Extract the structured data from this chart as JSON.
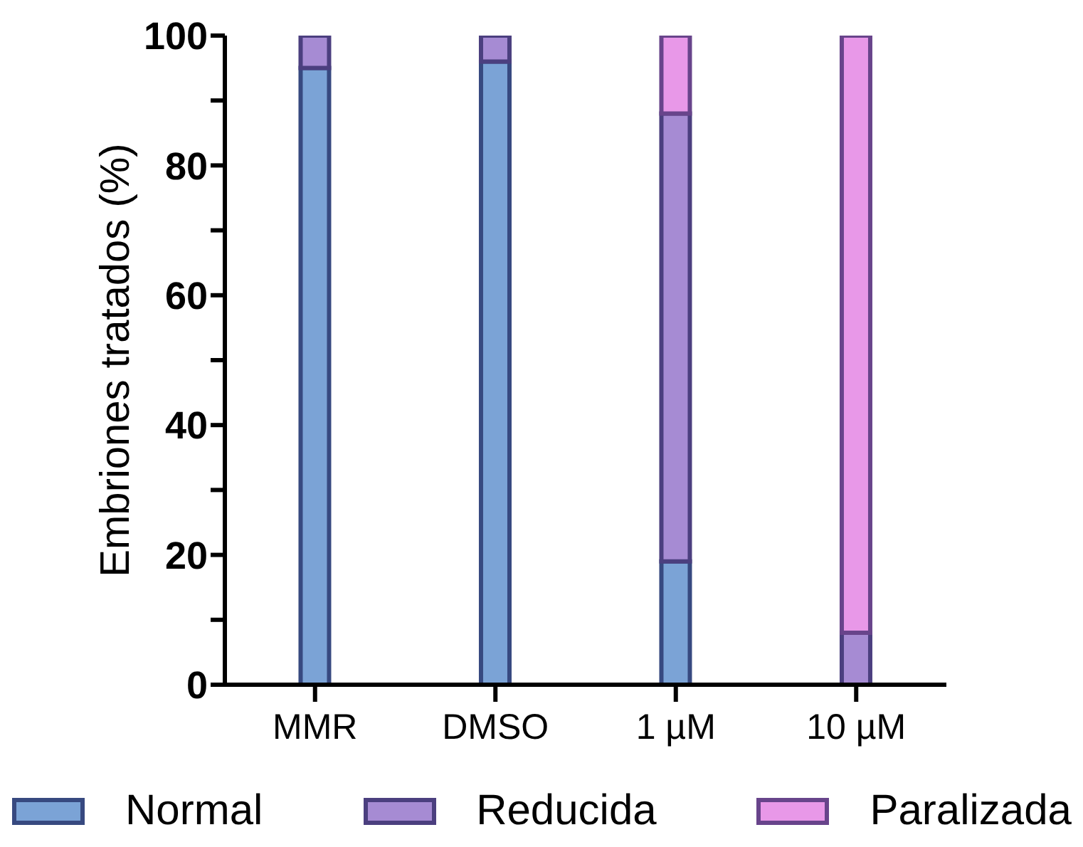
{
  "chart_data": {
    "type": "bar",
    "stacked": true,
    "ylabel": "Embriones tratados (%)",
    "categories": [
      "MMR",
      "DMSO",
      "1 µM",
      "10 µM"
    ],
    "series": [
      {
        "name": "Normal",
        "color": "#7ba3d6",
        "values": [
          95,
          96,
          19,
          0
        ]
      },
      {
        "name": "Reducida",
        "color": "#a68bd3",
        "values": [
          5,
          4,
          69,
          8
        ]
      },
      {
        "name": "Paralizada",
        "color": "#e898e8",
        "values": [
          0,
          0,
          12,
          92
        ]
      }
    ],
    "ylim": [
      0,
      100
    ],
    "yticks": [
      0,
      {
        "value": 10,
        "label": null
      },
      20,
      {
        "value": 30,
        "label": null
      },
      40,
      {
        "value": 50,
        "label": null
      },
      60,
      {
        "value": 70,
        "label": null
      },
      80,
      {
        "value": 90,
        "label": null
      },
      100
    ],
    "grid": false,
    "legend": "bottom"
  }
}
